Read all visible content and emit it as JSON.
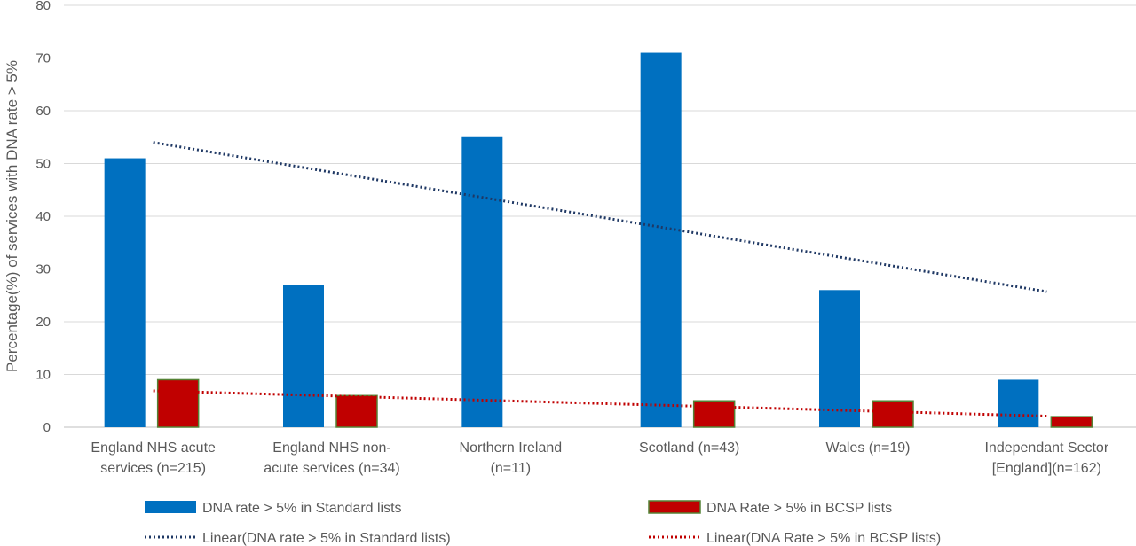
{
  "chart_data": {
    "type": "bar",
    "title": "",
    "xlabel": "",
    "ylabel": "Percentage(%) of services with DNA rate > 5%",
    "ylim": [
      0,
      80
    ],
    "yticks": [
      0,
      10,
      20,
      30,
      40,
      50,
      60,
      70,
      80
    ],
    "grid": true,
    "legend_position": "bottom",
    "categories": [
      [
        "England NHS acute",
        "services (n=215)"
      ],
      [
        "England NHS non-",
        "acute services (n=34)"
      ],
      [
        "Northern Ireland",
        "(n=11)"
      ],
      [
        "Scotland (n=43)"
      ],
      [
        "Wales (n=19)"
      ],
      [
        "Independant Sector",
        "[England](n=162)"
      ]
    ],
    "series": [
      {
        "name": "DNA rate > 5% in Standard lists",
        "color": "#0070c0",
        "values": [
          51,
          27,
          55,
          71,
          26,
          9
        ]
      },
      {
        "name": "DNA Rate > 5% in BCSP lists",
        "color": "#c00000",
        "border": "#548235",
        "values": [
          9,
          6,
          0,
          5,
          5,
          2
        ]
      }
    ],
    "trendlines": [
      {
        "name": "Linear(DNA rate > 5% in Standard lists)",
        "color": "#1f3864",
        "start": 54.0,
        "end": 25.7
      },
      {
        "name": "Linear(DNA Rate > 5% in BCSP lists)",
        "color": "#c00000",
        "start": 6.9,
        "end": 2.1
      }
    ]
  }
}
